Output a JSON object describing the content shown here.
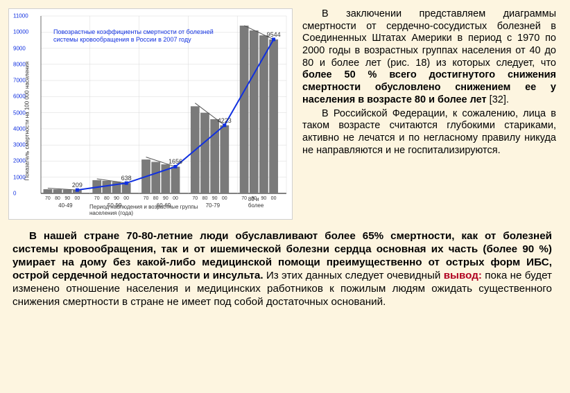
{
  "chart": {
    "title": "Повозрастные коэффициенты смертности от болезней системы кровообращения в России в 2007 году",
    "y_axis_title": "Показатель смертности на 100 000 населения",
    "x_axis_title": "Период наблюдения и возрастные группы населения (года)",
    "y_max": 11000,
    "y_ticks": [
      0,
      1000,
      2000,
      3000,
      4000,
      5000,
      6000,
      7000,
      8000,
      9000,
      10000,
      11000
    ],
    "line_color": "#1030e0",
    "grid_color": "#d8d8d8",
    "bar_color": "#7a7a7a",
    "bg_color": "#ffffff",
    "groups": [
      {
        "age": "40-49",
        "years": [
          "1970",
          "1980",
          "1990",
          "2000"
        ],
        "label_value": "209",
        "final": 209,
        "bars": [
          260,
          250,
          230,
          209
        ],
        "slope_start": 320
      },
      {
        "age": "50-59",
        "years": [
          "1970",
          "1980",
          "1990",
          "2000"
        ],
        "label_value": "638",
        "final": 638,
        "bars": [
          820,
          780,
          720,
          638
        ],
        "slope_start": 900
      },
      {
        "age": "60-69",
        "years": [
          "1970",
          "1980",
          "1990",
          "2000"
        ],
        "label_value": "1656",
        "final": 1656,
        "bars": [
          2100,
          1950,
          1800,
          1656
        ],
        "slope_start": 2250
      },
      {
        "age": "70-79",
        "years": [
          "1970",
          "1980",
          "1990",
          "2000"
        ],
        "label_value": "4223",
        "final": 4223,
        "bars": [
          5400,
          5000,
          4600,
          4223
        ],
        "slope_start": 5600
      },
      {
        "age": "80 и более",
        "years": [
          "1970",
          "1980",
          "1990",
          "2000"
        ],
        "label_value": "9544",
        "final": 9544,
        "bars": [
          10400,
          10100,
          9800,
          9544
        ],
        "slope_start": 10400
      }
    ]
  },
  "text": {
    "p1_a": "В заключении представляем диаграммы смертности от сердечно-сосудистых болезней в Соединенных Штатах Америки в период с 1970 по 2000 годы в возрастных группах населения от 40 до 80 и более лет (рис. 18) из которых следует, что ",
    "p1_b": "более 50 % всего достигнутого снижения смертности обусловлено снижением ее у населения в возрасте 80 и более лет",
    "p1_c": " [32].",
    "p2": "В Российской Федерации, к сожалению, лица в таком возрасте считаются глубокими стариками, активно не лечатся и по негласному правилу никуда не направляются и не госпитализируются.",
    "bottom_a": "В нашей стране 70-80-летние люди обуславливают более 65% смертности, как от болезней системы кровообращения, так и от ишемической болезни сердца основная их часть (более 90 %) умирает на дому без какой-либо медицинской помощи преимущественно от острых форм ИБС, острой сердечной недостаточности и инсульта.",
    "bottom_b": " Из этих данных следует очевидный ",
    "bottom_vy": "вывод:",
    "bottom_c": " пока не будет изменено отношение населения и медицинских работников к пожилым людям ожидать существенного снижения смертности в стране не имеет под собой достаточных оснований."
  }
}
